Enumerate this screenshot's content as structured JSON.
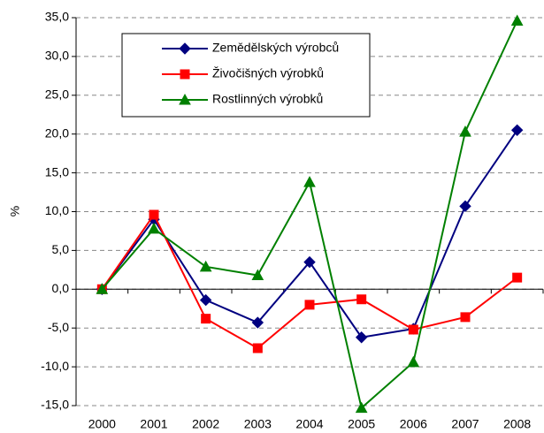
{
  "chart_data": {
    "type": "line",
    "ylabel": "%",
    "categories": [
      "2000",
      "2001",
      "2002",
      "2003",
      "2004",
      "2005",
      "2006",
      "2007",
      "2008"
    ],
    "series": [
      {
        "name": "Zemědělských výrobců",
        "color": "#000080",
        "marker": "diamond",
        "values": [
          0,
          9.0,
          -1.4,
          -4.3,
          3.5,
          -6.2,
          -5.1,
          10.7,
          20.5
        ]
      },
      {
        "name": "Živočišných výrobků",
        "color": "#ff0000",
        "marker": "square",
        "values": [
          0,
          9.6,
          -3.8,
          -7.6,
          -2.0,
          -1.3,
          -5.2,
          -3.6,
          1.5
        ]
      },
      {
        "name": "Rostlinných výrobků",
        "color": "#008000",
        "marker": "triangle",
        "values": [
          0,
          7.8,
          2.9,
          1.8,
          13.8,
          -15.3,
          -9.4,
          20.3,
          34.6
        ]
      }
    ],
    "ylim": [
      -15,
      35
    ],
    "yticks": [
      {
        "value": -15,
        "label": "-15,0"
      },
      {
        "value": -10,
        "label": "-10,0"
      },
      {
        "value": -5,
        "label": "-5,0"
      },
      {
        "value": 0,
        "label": "0,0"
      },
      {
        "value": 5,
        "label": "5,0"
      },
      {
        "value": 10,
        "label": "10,0"
      },
      {
        "value": 15,
        "label": "15,0"
      },
      {
        "value": 20,
        "label": "20,0"
      },
      {
        "value": 25,
        "label": "25,0"
      },
      {
        "value": 30,
        "label": "30,0"
      },
      {
        "value": 35,
        "label": "35,0"
      }
    ],
    "grid": true,
    "legend": "upper left"
  }
}
